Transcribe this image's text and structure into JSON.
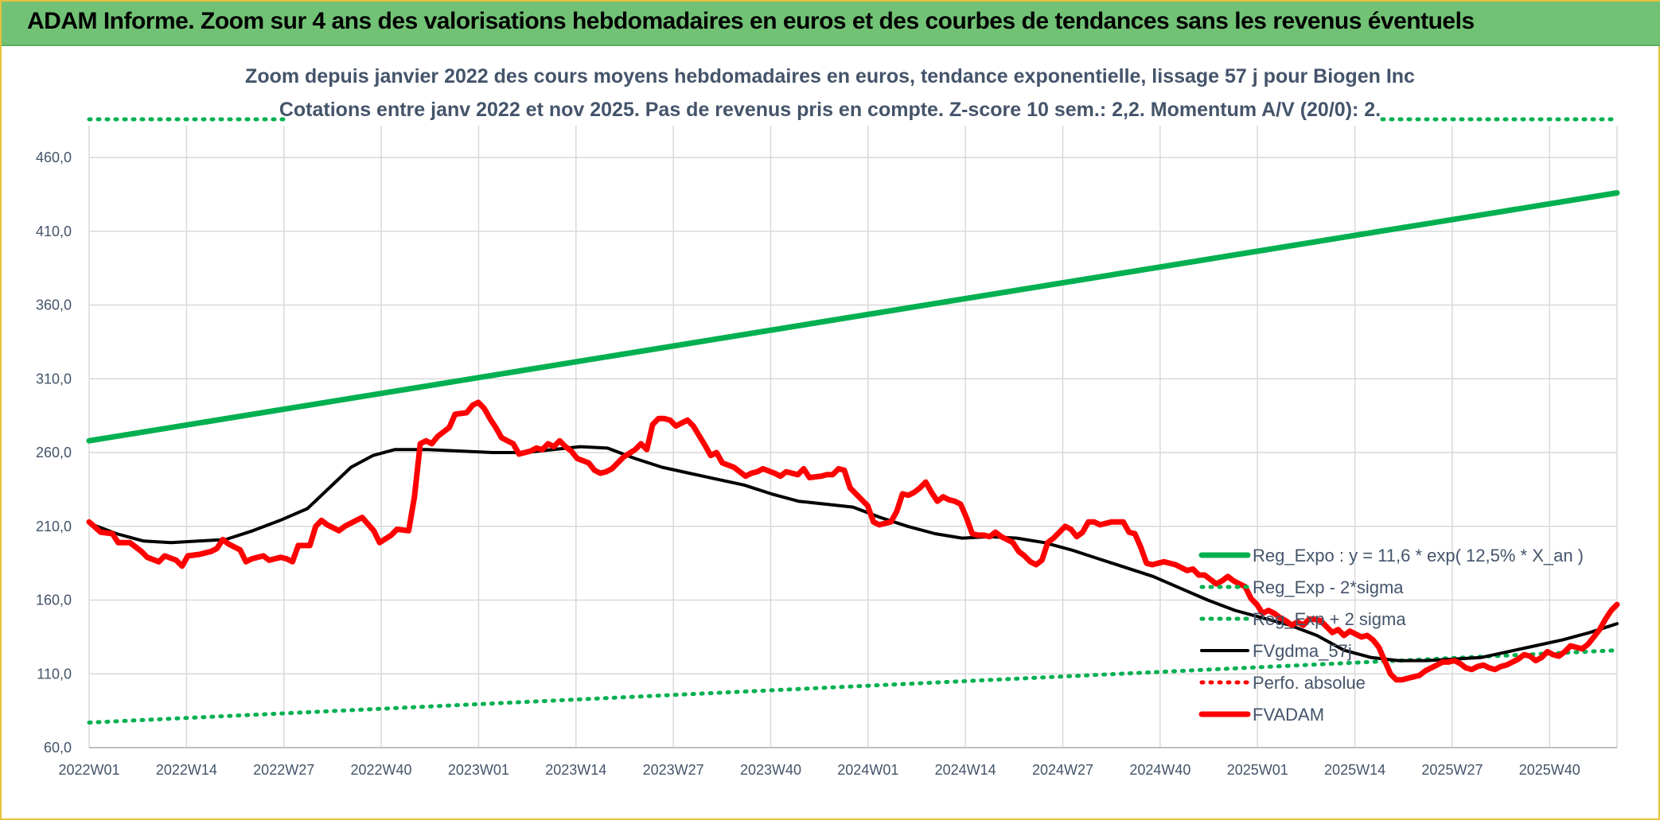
{
  "banner": {
    "title": "ADAM Informe. Zoom sur 4 ans des valorisations hebdomadaires en euros et des courbes de tendances sans les revenus éventuels"
  },
  "chart_data": {
    "type": "line",
    "title": "Zoom depuis janvier 2022 des cours moyens hebdomadaires en euros, tendance exponentielle, lissage 57 j pour Biogen Inc",
    "subtitle": "Cotations entre janv 2022 et nov 2025. Pas de revenus pris en compte. Z-score 10 sem.: 2,2. Momentum A/V (20/0): 2.",
    "xlabel": "",
    "ylabel": "",
    "ylim": [
      60,
      485
    ],
    "yticks": [
      "60,0",
      "110,0",
      "160,0",
      "210,0",
      "260,0",
      "310,0",
      "360,0",
      "410,0",
      "460,0"
    ],
    "ytick_values": [
      60,
      110,
      160,
      210,
      260,
      310,
      360,
      410,
      460
    ],
    "xticks": [
      "2022W01",
      "2022W14",
      "2022W27",
      "2022W40",
      "2023W01",
      "2023W14",
      "2023W27",
      "2023W40",
      "2024W01",
      "2024W14",
      "2024W27",
      "2024W40",
      "2025W01",
      "2025W14",
      "2025W27",
      "2025W40"
    ],
    "xtick_index": [
      0,
      13,
      26,
      39,
      52,
      65,
      78,
      91,
      104,
      117,
      130,
      143,
      156,
      169,
      182,
      195
    ],
    "x_count": 205,
    "grid": true,
    "legend_position": "right",
    "colors": {
      "reg_expo": "#00b050",
      "band": "#00b050",
      "fvgdma": "#000000",
      "perfo": "#ff0000",
      "fvadam": "#ff0000"
    },
    "series": [
      {
        "name": "Reg_Expo : y = 11,6 * exp( 12,5% *  X_an )",
        "style": "solid",
        "color": "#00b050",
        "width": 7,
        "points": [
          [
            0,
            268
          ],
          [
            204,
            436
          ]
        ]
      },
      {
        "name": "Reg_Exp - 2*sigma",
        "style": "dotted",
        "color": "#00b050",
        "width": 5,
        "points": [
          [
            0,
            77
          ],
          [
            204,
            126
          ]
        ]
      },
      {
        "name": "Reg_Exp + 2 sigma",
        "style": "dotted",
        "color": "#00b050",
        "width": 5,
        "points": [
          [
            0,
            502
          ],
          [
            24,
            502
          ],
          [
            173,
            502
          ],
          [
            204,
            502
          ]
        ]
      },
      {
        "name": "FVgdma_57j",
        "style": "solid",
        "color": "#000000",
        "width": 4,
        "points": [
          [
            0,
            212
          ],
          [
            5,
            205
          ],
          [
            10,
            200
          ],
          [
            15,
            199
          ],
          [
            20,
            200
          ],
          [
            25,
            201
          ],
          [
            30,
            207
          ],
          [
            35,
            214
          ],
          [
            40,
            222
          ],
          [
            44,
            236
          ],
          [
            48,
            250
          ],
          [
            52,
            258
          ],
          [
            56,
            262
          ],
          [
            62,
            262
          ],
          [
            68,
            261
          ],
          [
            74,
            260
          ],
          [
            80,
            260
          ],
          [
            85,
            262
          ],
          [
            90,
            264
          ],
          [
            95,
            263
          ],
          [
            100,
            256
          ],
          [
            105,
            250
          ],
          [
            110,
            246
          ],
          [
            115,
            242
          ],
          [
            120,
            238
          ],
          [
            125,
            232
          ],
          [
            130,
            227
          ],
          [
            135,
            225
          ],
          [
            140,
            223
          ],
          [
            145,
            216
          ],
          [
            150,
            210
          ],
          [
            155,
            205
          ],
          [
            160,
            202
          ],
          [
            165,
            203
          ],
          [
            170,
            202
          ],
          [
            175,
            199
          ],
          [
            180,
            194
          ],
          [
            185,
            188
          ],
          [
            190,
            182
          ],
          [
            195,
            176
          ],
          [
            200,
            168
          ],
          [
            205,
            160
          ],
          [
            210,
            153
          ],
          [
            215,
            148
          ],
          [
            220,
            143
          ],
          [
            225,
            136
          ],
          [
            230,
            126
          ],
          [
            235,
            121
          ],
          [
            240,
            119
          ],
          [
            245,
            119
          ],
          [
            250,
            120
          ],
          [
            255,
            121
          ],
          [
            260,
            125
          ],
          [
            265,
            129
          ],
          [
            270,
            133
          ],
          [
            275,
            138
          ],
          [
            280,
            144
          ]
        ]
      },
      {
        "name": "Perfo. absolue",
        "style": "dotted",
        "color": "#ff0000",
        "width": 5,
        "points": []
      },
      {
        "name": "FVADAM",
        "style": "solid",
        "color": "#ff0000",
        "width": 7,
        "points": [
          [
            0,
            213
          ],
          [
            2,
            206
          ],
          [
            4,
            205
          ],
          [
            5,
            199
          ],
          [
            7,
            199
          ],
          [
            8,
            196
          ],
          [
            9,
            193
          ],
          [
            10,
            189
          ],
          [
            12,
            186
          ],
          [
            13,
            190
          ],
          [
            15,
            187
          ],
          [
            16,
            183
          ],
          [
            17,
            190
          ],
          [
            19,
            191
          ],
          [
            21,
            193
          ],
          [
            22,
            195
          ],
          [
            23,
            201
          ],
          [
            24,
            198
          ],
          [
            26,
            194
          ],
          [
            27,
            186
          ],
          [
            28,
            188
          ],
          [
            30,
            190
          ],
          [
            31,
            187
          ],
          [
            33,
            189
          ],
          [
            34,
            188
          ],
          [
            35,
            186
          ],
          [
            36,
            197
          ],
          [
            38,
            197
          ],
          [
            39,
            210
          ],
          [
            40,
            214
          ],
          [
            41,
            211
          ],
          [
            43,
            207
          ],
          [
            44,
            210
          ],
          [
            46,
            214
          ],
          [
            47,
            216
          ],
          [
            49,
            207
          ],
          [
            50,
            199
          ],
          [
            52,
            204
          ],
          [
            53,
            208
          ],
          [
            55,
            207
          ],
          [
            56,
            230
          ],
          [
            57,
            266
          ],
          [
            58,
            268
          ],
          [
            59,
            266
          ],
          [
            60,
            271
          ],
          [
            62,
            277
          ],
          [
            63,
            286
          ],
          [
            65,
            287
          ],
          [
            66,
            292
          ],
          [
            67,
            294
          ],
          [
            68,
            290
          ],
          [
            69,
            283
          ],
          [
            70,
            277
          ],
          [
            71,
            270
          ],
          [
            72,
            268
          ],
          [
            73,
            266
          ],
          [
            74,
            259
          ],
          [
            75,
            260
          ],
          [
            76,
            261
          ],
          [
            77,
            263
          ],
          [
            78,
            262
          ],
          [
            79,
            266
          ],
          [
            80,
            264
          ],
          [
            81,
            268
          ],
          [
            82,
            264
          ],
          [
            83,
            261
          ],
          [
            84,
            256
          ],
          [
            86,
            253
          ],
          [
            87,
            248
          ],
          [
            88,
            246
          ],
          [
            89,
            247
          ],
          [
            90,
            249
          ],
          [
            91,
            253
          ],
          [
            92,
            257
          ],
          [
            94,
            262
          ],
          [
            95,
            266
          ],
          [
            96,
            262
          ],
          [
            97,
            279
          ],
          [
            98,
            283
          ],
          [
            99,
            283
          ],
          [
            100,
            282
          ],
          [
            101,
            278
          ],
          [
            102,
            280
          ],
          [
            103,
            282
          ],
          [
            104,
            278
          ],
          [
            106,
            265
          ],
          [
            107,
            258
          ],
          [
            108,
            260
          ],
          [
            109,
            253
          ],
          [
            111,
            250
          ],
          [
            112,
            247
          ],
          [
            113,
            244
          ],
          [
            114,
            246
          ],
          [
            115,
            247
          ],
          [
            116,
            249
          ],
          [
            118,
            246
          ],
          [
            119,
            244
          ],
          [
            120,
            247
          ],
          [
            121,
            246
          ],
          [
            122,
            245
          ],
          [
            123,
            249
          ],
          [
            124,
            243
          ],
          [
            126,
            244
          ],
          [
            127,
            245
          ],
          [
            128,
            245
          ],
          [
            129,
            249
          ],
          [
            130,
            248
          ],
          [
            131,
            236
          ],
          [
            133,
            228
          ],
          [
            134,
            224
          ],
          [
            135,
            213
          ],
          [
            136,
            211
          ],
          [
            138,
            213
          ],
          [
            139,
            220
          ],
          [
            140,
            232
          ],
          [
            141,
            231
          ],
          [
            142,
            233
          ],
          [
            143,
            236
          ],
          [
            144,
            240
          ],
          [
            145,
            233
          ],
          [
            146,
            227
          ],
          [
            147,
            230
          ],
          [
            148,
            228
          ],
          [
            149,
            227
          ],
          [
            150,
            225
          ],
          [
            151,
            216
          ],
          [
            152,
            205
          ],
          [
            153,
            204
          ],
          [
            154,
            204
          ],
          [
            155,
            203
          ],
          [
            156,
            206
          ],
          [
            157,
            203
          ],
          [
            158,
            201
          ],
          [
            159,
            199
          ],
          [
            160,
            193
          ],
          [
            161,
            190
          ],
          [
            162,
            186
          ],
          [
            163,
            184
          ],
          [
            164,
            187
          ],
          [
            165,
            199
          ],
          [
            166,
            202
          ],
          [
            167,
            206
          ],
          [
            168,
            210
          ],
          [
            169,
            208
          ],
          [
            170,
            203
          ],
          [
            171,
            206
          ],
          [
            172,
            213
          ],
          [
            173,
            213
          ],
          [
            174,
            211
          ],
          [
            175,
            212
          ],
          [
            176,
            213
          ],
          [
            177,
            213
          ],
          [
            178,
            213
          ],
          [
            179,
            206
          ],
          [
            180,
            205
          ],
          [
            181,
            196
          ],
          [
            182,
            185
          ],
          [
            183,
            184
          ],
          [
            185,
            186
          ],
          [
            186,
            185
          ],
          [
            187,
            184
          ],
          [
            189,
            180
          ],
          [
            190,
            181
          ],
          [
            191,
            177
          ],
          [
            192,
            177
          ],
          [
            193,
            174
          ],
          [
            194,
            171
          ],
          [
            195,
            173
          ],
          [
            196,
            176
          ],
          [
            197,
            173
          ],
          [
            198,
            171
          ],
          [
            199,
            169
          ],
          [
            200,
            161
          ],
          [
            201,
            157
          ],
          [
            202,
            151
          ],
          [
            203,
            153
          ],
          [
            204,
            151
          ],
          [
            205,
            148
          ],
          [
            206,
            146
          ],
          [
            207,
            143
          ],
          [
            208,
            145
          ],
          [
            209,
            143
          ],
          [
            210,
            147
          ],
          [
            211,
            147
          ],
          [
            212,
            146
          ],
          [
            213,
            142
          ],
          [
            214,
            138
          ],
          [
            215,
            140
          ],
          [
            216,
            136
          ],
          [
            217,
            139
          ],
          [
            218,
            137
          ],
          [
            219,
            135
          ],
          [
            220,
            136
          ],
          [
            221,
            133
          ],
          [
            222,
            128
          ],
          [
            223,
            119
          ],
          [
            224,
            110
          ],
          [
            225,
            106
          ],
          [
            226,
            106
          ],
          [
            227,
            107
          ],
          [
            228,
            108
          ],
          [
            229,
            109
          ],
          [
            230,
            112
          ],
          [
            231,
            114
          ],
          [
            232,
            116
          ],
          [
            233,
            118
          ],
          [
            234,
            118
          ],
          [
            235,
            119
          ],
          [
            236,
            117
          ],
          [
            237,
            114
          ],
          [
            238,
            113
          ],
          [
            239,
            115
          ],
          [
            240,
            116
          ],
          [
            241,
            114
          ],
          [
            242,
            113
          ],
          [
            243,
            115
          ],
          [
            244,
            116
          ],
          [
            245,
            118
          ],
          [
            246,
            120
          ],
          [
            247,
            123
          ],
          [
            248,
            122
          ],
          [
            249,
            119
          ],
          [
            250,
            121
          ],
          [
            251,
            125
          ],
          [
            252,
            123
          ],
          [
            253,
            122
          ],
          [
            254,
            125
          ],
          [
            255,
            129
          ],
          [
            256,
            128
          ],
          [
            257,
            127
          ],
          [
            258,
            130
          ],
          [
            259,
            135
          ],
          [
            260,
            140
          ],
          [
            261,
            147
          ],
          [
            262,
            153
          ],
          [
            263,
            157
          ]
        ]
      }
    ]
  }
}
